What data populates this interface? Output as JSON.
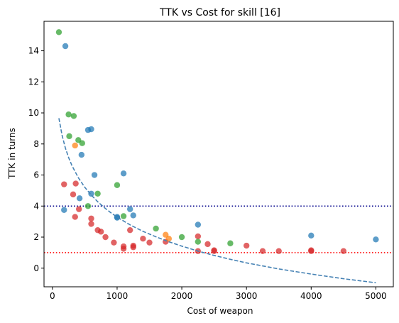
{
  "chart_data": {
    "type": "scatter",
    "title": "TTK vs Cost for skill [16]",
    "xlabel": "Cost of weapon",
    "ylabel": "TTK in turns",
    "xlim": [
      -130,
      5270
    ],
    "ylim": [
      -1.2,
      15.9
    ],
    "xticks": [
      0,
      1000,
      2000,
      3000,
      4000,
      5000
    ],
    "yticks": [
      0,
      2,
      4,
      6,
      8,
      10,
      12,
      14
    ],
    "grid": false,
    "series": [
      {
        "color": "#d62728",
        "points": [
          [
            180,
            5.4
          ],
          [
            320,
            4.75
          ],
          [
            350,
            3.3
          ],
          [
            360,
            5.45
          ],
          [
            410,
            3.8
          ],
          [
            600,
            3.2
          ],
          [
            600,
            2.85
          ],
          [
            700,
            2.45
          ],
          [
            750,
            2.35
          ],
          [
            820,
            2.0
          ],
          [
            950,
            1.65
          ],
          [
            1100,
            1.4
          ],
          [
            1100,
            1.25
          ],
          [
            1200,
            2.45
          ],
          [
            1250,
            1.45
          ],
          [
            1250,
            1.35
          ],
          [
            1400,
            1.9
          ],
          [
            1500,
            1.65
          ],
          [
            1750,
            1.7
          ],
          [
            2250,
            2.05
          ],
          [
            2250,
            1.1
          ],
          [
            2400,
            1.55
          ],
          [
            2500,
            1.15
          ],
          [
            2500,
            1.1
          ],
          [
            3000,
            1.45
          ],
          [
            3250,
            1.1
          ],
          [
            3500,
            1.1
          ],
          [
            4000,
            1.1
          ],
          [
            4000,
            1.15
          ],
          [
            4500,
            1.1
          ]
        ]
      },
      {
        "color": "#1f77b4",
        "points": [
          [
            180,
            3.75
          ],
          [
            200,
            14.3
          ],
          [
            420,
            4.5
          ],
          [
            450,
            7.3
          ],
          [
            550,
            8.9
          ],
          [
            600,
            8.95
          ],
          [
            600,
            4.8
          ],
          [
            650,
            6.0
          ],
          [
            1000,
            3.3
          ],
          [
            1000,
            3.25
          ],
          [
            1100,
            6.1
          ],
          [
            1200,
            3.8
          ],
          [
            1250,
            3.4
          ],
          [
            2250,
            2.8
          ],
          [
            4000,
            2.1
          ],
          [
            5000,
            1.85
          ]
        ]
      },
      {
        "color": "#2ca02c",
        "points": [
          [
            100,
            15.2
          ],
          [
            250,
            9.9
          ],
          [
            260,
            8.5
          ],
          [
            330,
            9.8
          ],
          [
            400,
            8.25
          ],
          [
            460,
            8.05
          ],
          [
            550,
            4.0
          ],
          [
            700,
            4.8
          ],
          [
            1000,
            5.35
          ],
          [
            1100,
            3.35
          ],
          [
            1600,
            2.55
          ],
          [
            2000,
            2.0
          ],
          [
            2250,
            1.7
          ],
          [
            2750,
            1.6
          ]
        ]
      },
      {
        "color": "#ff7f0e",
        "points": [
          [
            350,
            7.9
          ],
          [
            1750,
            2.15
          ],
          [
            1800,
            1.9
          ]
        ]
      }
    ],
    "trend_line": {
      "style": "dashed",
      "color": "#4682b4",
      "x": [
        100,
        150,
        200,
        250,
        300,
        400,
        500,
        600,
        700,
        800,
        900,
        1000,
        1200,
        1400,
        1600,
        1800,
        2000,
        2250,
        2500,
        2750,
        3000,
        3500,
        4000,
        4500,
        5000
      ],
      "y": [
        9.66,
        8.54,
        7.74,
        7.13,
        6.62,
        5.83,
        5.21,
        4.71,
        4.28,
        3.91,
        3.58,
        3.29,
        2.79,
        2.37,
        2.02,
        1.7,
        1.42,
        1.1,
        0.82,
        0.57,
        0.34,
        -0.05,
        -0.38,
        -0.68,
        -0.94
      ]
    },
    "hlines": [
      {
        "y": 4,
        "color": "#00008b",
        "style": "dotted"
      },
      {
        "y": 1,
        "color": "#ff0000",
        "style": "dotted"
      }
    ]
  }
}
